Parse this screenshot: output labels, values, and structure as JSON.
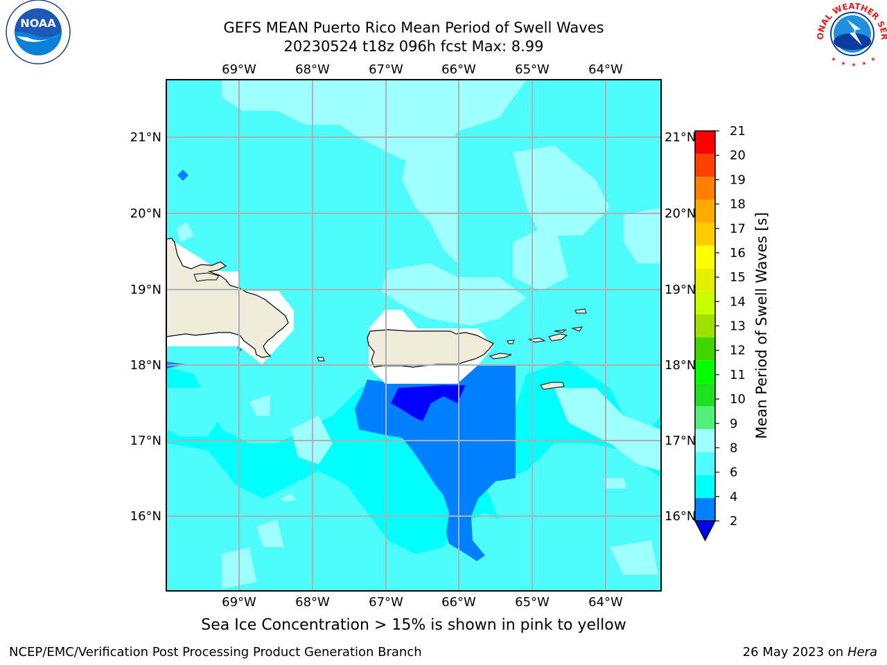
{
  "title": {
    "line1": "GEFS MEAN Puerto Rico Mean Period of Swell Waves",
    "line2": "20230524 t18z 096h fcst   Max: 8.99"
  },
  "map": {
    "lon_labels": [
      "69°W",
      "68°W",
      "67°W",
      "66°W",
      "65°W",
      "64°W"
    ],
    "lat_labels": [
      "21°N",
      "20°N",
      "19°N",
      "18°N",
      "17°N",
      "16°N"
    ],
    "land_color": "#efecdc",
    "grid_color": "#b0b0b0"
  },
  "colorbar": {
    "label": "Mean Period of Swell Waves [s]",
    "ticks": [
      "2",
      "4",
      "6",
      "8",
      "9",
      "10",
      "11",
      "12",
      "13",
      "14",
      "15",
      "16",
      "17",
      "18",
      "19",
      "20",
      "21"
    ],
    "colors": [
      "#0080ff",
      "#00ffff",
      "#4ffcfc",
      "#a0ffff",
      "#50f07a",
      "#1ee01e",
      "#00ff00",
      "#40d400",
      "#a0e000",
      "#c8ff00",
      "#e4f000",
      "#ffff00",
      "#ffcc00",
      "#ffaa00",
      "#ff8000",
      "#ff4000",
      "#ff0000"
    ],
    "extend_color": "#0000ff"
  },
  "field_colors": {
    "base": "#00ffff",
    "light": "#4ffcfc",
    "lighter": "#a0ffff",
    "low": "#0080ff",
    "lowest": "#0000ff"
  },
  "note": "Sea Ice Concentration > 15% is shown in pink to yellow",
  "footer": {
    "left": "NCEP/EMC/Verification Post Processing Product Generation Branch",
    "date": "26 May 2023 on",
    "machine": "Hera"
  },
  "logos": {
    "noaa_text": "NOAA",
    "nws_text": "NATIONAL WEATHER SERVICE"
  }
}
